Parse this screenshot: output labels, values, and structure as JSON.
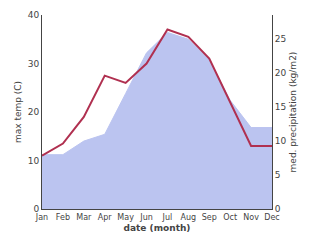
{
  "chart_data": {
    "type": "line",
    "categories": [
      "Jan",
      "Feb",
      "Mar",
      "Apr",
      "May",
      "Jun",
      "Jul",
      "Aug",
      "Sep",
      "Oct",
      "Nov",
      "Dec"
    ],
    "series": [
      {
        "type": "area",
        "axis": "y2",
        "color": "#bbc4f0",
        "values": [
          8,
          8,
          10,
          11,
          17,
          23,
          26,
          25,
          22,
          16,
          12,
          12
        ]
      },
      {
        "type": "line",
        "color": "#b03050",
        "values": [
          11,
          13.5,
          19,
          27.5,
          26,
          30,
          37,
          35.5,
          31,
          22,
          13,
          13
        ]
      }
    ],
    "xlabel": "date (month)",
    "ylabel": "max temp (C)",
    "y2label": "med. precipitation (kg/m2)",
    "ylim": [
      0,
      40
    ],
    "yticks": [
      0,
      10,
      20,
      30,
      40
    ],
    "y2lim": [
      0,
      28.57
    ],
    "y2ticks": [
      0,
      5,
      10,
      15,
      20,
      25
    ],
    "grid": false
  }
}
